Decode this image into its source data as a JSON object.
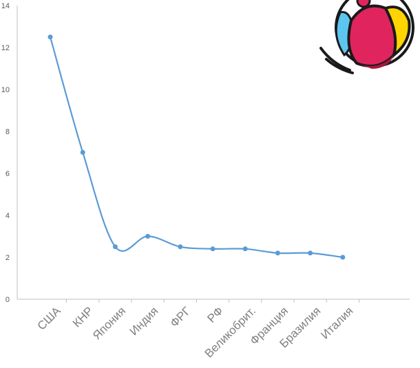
{
  "chart_data": {
    "type": "line",
    "categories": [
      "США",
      "КНР",
      "Япония",
      "Индия",
      "ФРГ",
      "РФ",
      "Великобрит.",
      "Франция",
      "Бразилия",
      "Италия"
    ],
    "values": [
      12.5,
      7.0,
      2.5,
      3.0,
      2.5,
      2.4,
      2.4,
      2.2,
      2.2,
      2.0
    ],
    "yticks": [
      0,
      2,
      4,
      6,
      8,
      10,
      12,
      14
    ],
    "ylim": [
      0,
      14
    ],
    "smooth": true,
    "markers": true,
    "grid": false,
    "legend": "none",
    "colors": {
      "line": "#5b9bd5",
      "axis": "#bfbfbf"
    }
  },
  "decoration": {
    "icon": "beach-ball-icon"
  }
}
